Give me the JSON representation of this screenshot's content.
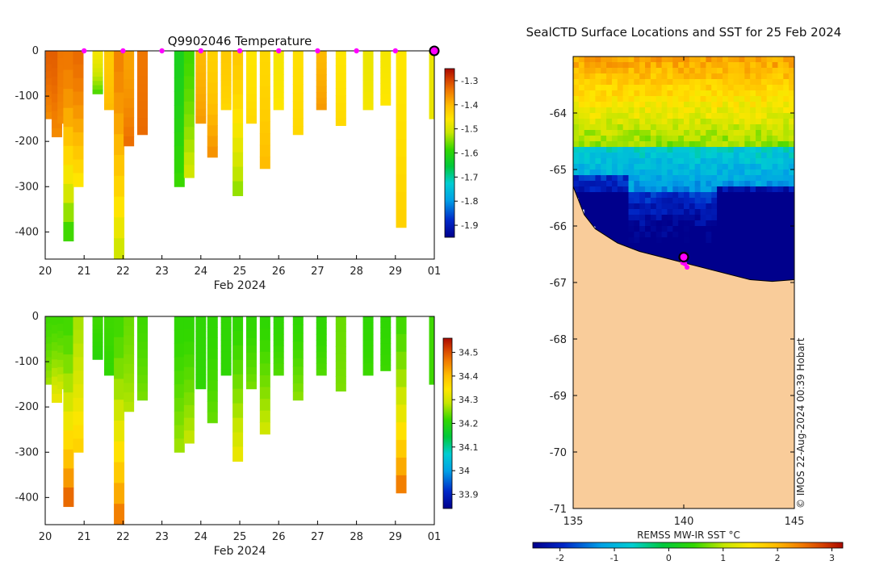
{
  "chart_data": [
    {
      "type": "heatmap",
      "id": "temperature",
      "title": "Q9902046  Temperature",
      "xlabel": "Feb 2024",
      "ylabel": "",
      "x_tick_labels": [
        "20",
        "21",
        "22",
        "23",
        "24",
        "25",
        "26",
        "27",
        "28",
        "29",
        "01"
      ],
      "xlim": [
        20,
        30
      ],
      "ylim": [
        -460,
        0
      ],
      "y_ticks": [
        0,
        -100,
        -200,
        -300,
        -400
      ],
      "colorbar": {
        "ticks": [
          -1.3,
          -1.4,
          -1.5,
          -1.6,
          -1.7,
          -1.8,
          -1.9
        ],
        "range": [
          -1.95,
          -1.25
        ]
      },
      "marker_days": [
        21,
        22,
        23,
        24,
        25,
        26,
        27,
        28,
        29
      ],
      "highlight_day": 30,
      "profiles": [
        {
          "t": 20.15,
          "depth": 150,
          "top": -1.32,
          "bottom": -1.36
        },
        {
          "t": 20.3,
          "depth": 190,
          "top": -1.32,
          "bottom": -1.36
        },
        {
          "t": 20.45,
          "depth": 160,
          "top": -1.34,
          "bottom": -1.36
        },
        {
          "t": 20.6,
          "depth": 420,
          "top": -1.34,
          "bottom": -1.6
        },
        {
          "t": 20.85,
          "depth": 300,
          "top": -1.33,
          "bottom": -1.47
        },
        {
          "t": 21.35,
          "depth": 95,
          "top": -1.47,
          "bottom": -1.58
        },
        {
          "t": 21.65,
          "depth": 130,
          "top": -1.42,
          "bottom": -1.4
        },
        {
          "t": 21.9,
          "depth": 460,
          "top": -1.35,
          "bottom": -1.52
        },
        {
          "t": 22.15,
          "depth": 210,
          "top": -1.38,
          "bottom": -1.33
        },
        {
          "t": 22.5,
          "depth": 185,
          "top": -1.34,
          "bottom": -1.33
        },
        {
          "t": 23.45,
          "depth": 300,
          "top": -1.62,
          "bottom": -1.58
        },
        {
          "t": 23.7,
          "depth": 280,
          "top": -1.58,
          "bottom": -1.5
        },
        {
          "t": 24.0,
          "depth": 160,
          "top": -1.4,
          "bottom": -1.37
        },
        {
          "t": 24.3,
          "depth": 235,
          "top": -1.43,
          "bottom": -1.36
        },
        {
          "t": 24.65,
          "depth": 130,
          "top": -1.42,
          "bottom": -1.44
        },
        {
          "t": 24.95,
          "depth": 320,
          "top": -1.42,
          "bottom": -1.55
        },
        {
          "t": 25.3,
          "depth": 160,
          "top": -1.46,
          "bottom": -1.44
        },
        {
          "t": 25.65,
          "depth": 260,
          "top": -1.44,
          "bottom": -1.4
        },
        {
          "t": 26.0,
          "depth": 130,
          "top": -1.47,
          "bottom": -1.46
        },
        {
          "t": 26.5,
          "depth": 185,
          "top": -1.45,
          "bottom": -1.44
        },
        {
          "t": 27.1,
          "depth": 130,
          "top": -1.4,
          "bottom": -1.37
        },
        {
          "t": 27.6,
          "depth": 165,
          "top": -1.46,
          "bottom": -1.44
        },
        {
          "t": 28.3,
          "depth": 130,
          "top": -1.48,
          "bottom": -1.47
        },
        {
          "t": 28.75,
          "depth": 120,
          "top": -1.47,
          "bottom": -1.46
        },
        {
          "t": 29.15,
          "depth": 390,
          "top": -1.46,
          "bottom": -1.43
        },
        {
          "t": 30.0,
          "depth": 150,
          "top": -1.48,
          "bottom": -1.48
        }
      ]
    },
    {
      "type": "heatmap",
      "id": "salinity",
      "title": "",
      "xlabel": "Feb 2024",
      "ylabel": "",
      "x_tick_labels": [
        "20",
        "21",
        "22",
        "23",
        "24",
        "25",
        "26",
        "27",
        "28",
        "29",
        "01"
      ],
      "xlim": [
        20,
        30
      ],
      "ylim": [
        -460,
        0
      ],
      "y_ticks": [
        0,
        -100,
        -200,
        -300,
        -400
      ],
      "colorbar": {
        "ticks": [
          34.5,
          34.4,
          34.3,
          34.2,
          34.1,
          34,
          33.9
        ],
        "range": [
          33.84,
          34.56
        ]
      },
      "profiles": [
        {
          "t": 20.15,
          "depth": 150,
          "top": 34.22,
          "bottom": 34.27
        },
        {
          "t": 20.3,
          "depth": 190,
          "top": 34.22,
          "bottom": 34.33
        },
        {
          "t": 20.45,
          "depth": 160,
          "top": 34.22,
          "bottom": 34.3
        },
        {
          "t": 20.6,
          "depth": 420,
          "top": 34.22,
          "bottom": 34.5
        },
        {
          "t": 20.85,
          "depth": 300,
          "top": 34.27,
          "bottom": 34.38
        },
        {
          "t": 21.35,
          "depth": 95,
          "top": 34.22,
          "bottom": 34.2
        },
        {
          "t": 21.65,
          "depth": 130,
          "top": 34.22,
          "bottom": 34.21
        },
        {
          "t": 21.9,
          "depth": 460,
          "top": 34.22,
          "bottom": 34.48
        },
        {
          "t": 22.15,
          "depth": 210,
          "top": 34.24,
          "bottom": 34.28
        },
        {
          "t": 22.5,
          "depth": 185,
          "top": 34.22,
          "bottom": 34.25
        },
        {
          "t": 23.45,
          "depth": 300,
          "top": 34.21,
          "bottom": 34.27
        },
        {
          "t": 23.7,
          "depth": 280,
          "top": 34.21,
          "bottom": 34.29
        },
        {
          "t": 24.0,
          "depth": 160,
          "top": 34.21,
          "bottom": 34.21
        },
        {
          "t": 24.3,
          "depth": 235,
          "top": 34.21,
          "bottom": 34.24
        },
        {
          "t": 24.65,
          "depth": 130,
          "top": 34.21,
          "bottom": 34.21
        },
        {
          "t": 24.95,
          "depth": 320,
          "top": 34.21,
          "bottom": 34.33
        },
        {
          "t": 25.3,
          "depth": 160,
          "top": 34.21,
          "bottom": 34.25
        },
        {
          "t": 25.65,
          "depth": 260,
          "top": 34.21,
          "bottom": 34.3
        },
        {
          "t": 26.0,
          "depth": 130,
          "top": 34.21,
          "bottom": 34.23
        },
        {
          "t": 26.5,
          "depth": 185,
          "top": 34.21,
          "bottom": 34.26
        },
        {
          "t": 27.1,
          "depth": 130,
          "top": 34.21,
          "bottom": 34.23
        },
        {
          "t": 27.6,
          "depth": 165,
          "top": 34.24,
          "bottom": 34.25
        },
        {
          "t": 28.3,
          "depth": 130,
          "top": 34.21,
          "bottom": 34.22
        },
        {
          "t": 28.75,
          "depth": 120,
          "top": 34.21,
          "bottom": 34.22
        },
        {
          "t": 29.15,
          "depth": 390,
          "top": 34.22,
          "bottom": 34.48
        },
        {
          "t": 30.0,
          "depth": 150,
          "top": 34.22,
          "bottom": 34.22
        }
      ]
    },
    {
      "type": "heatmap",
      "id": "sst-map",
      "title": "SealCTD Surface Locations and SST for 25 Feb 2024",
      "xlabel": "",
      "x_tick_labels": [
        "135",
        "140",
        "145"
      ],
      "y_tick_labels": [
        "-64",
        "-65",
        "-66",
        "-67",
        "-68",
        "-69",
        "-70",
        "-71"
      ],
      "xlim": [
        135,
        145
      ],
      "ylim": [
        -71,
        -63
      ],
      "colorbar": {
        "label": "REMSS MW-IR SST °C",
        "ticks": [
          -2,
          -1,
          0,
          1,
          2,
          3
        ],
        "range": [
          -2.5,
          3.2
        ]
      },
      "credit": "© IMOS 22-Aug-2024 00:39 Hobart",
      "seal_position": [
        140.0,
        -66.55
      ]
    }
  ]
}
